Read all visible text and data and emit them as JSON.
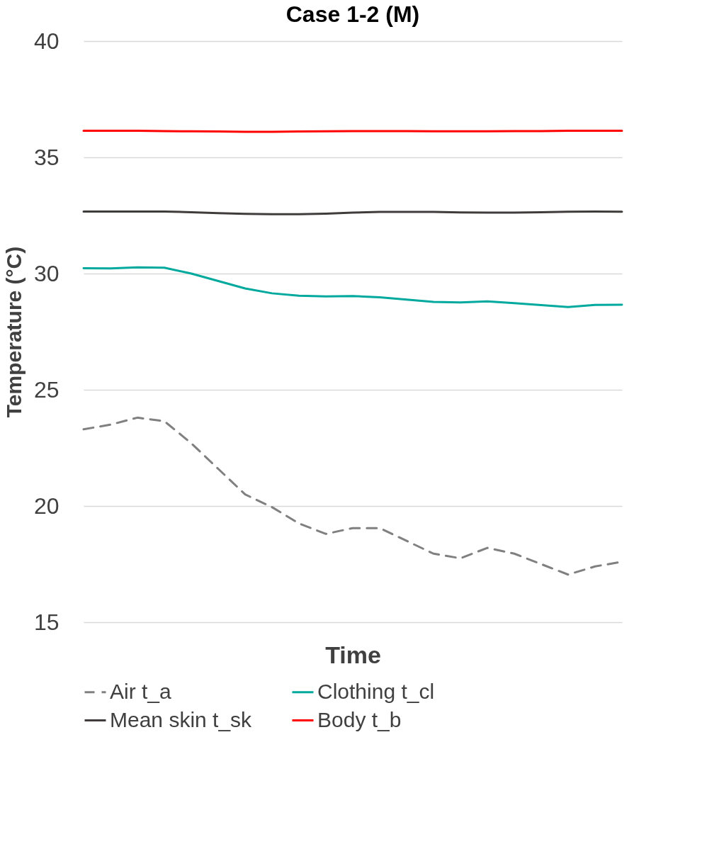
{
  "chart_data": {
    "type": "line",
    "title": "Case 1-2 (M)",
    "xlabel": "Time",
    "ylabel": "Temperature (°C)",
    "categories": [
      null,
      null,
      null,
      null,
      null,
      null,
      null,
      null,
      null,
      null,
      null,
      null,
      null,
      null,
      null,
      null,
      null,
      null,
      null,
      null,
      null
    ],
    "ylim": [
      15,
      40
    ],
    "yticks": [
      15,
      20,
      25,
      30,
      35,
      40
    ],
    "grid": "y",
    "tick_labels": "y",
    "legend": "bottom",
    "marker": "none",
    "series": [
      {
        "name": "Air t_a",
        "color": "#808080",
        "line_style": "dashed",
        "values": [
          23.3,
          23.5,
          23.8,
          23.65,
          22.7,
          21.6,
          20.5,
          19.95,
          19.25,
          18.8,
          19.05,
          19.05,
          18.5,
          17.95,
          17.75,
          18.2,
          17.95,
          17.5,
          17.05,
          17.4,
          17.6
        ]
      },
      {
        "name": "Clothing t_cl",
        "color": "#00a99d",
        "line_style": "solid",
        "values": [
          30.23,
          30.22,
          30.27,
          30.25,
          30.0,
          29.68,
          29.36,
          29.15,
          29.05,
          29.02,
          29.03,
          28.98,
          28.88,
          28.78,
          28.76,
          28.8,
          28.73,
          28.64,
          28.56,
          28.65,
          28.66
        ]
      },
      {
        "name": "Mean skin t_sk",
        "color": "#403c3c",
        "line_style": "solid",
        "values": [
          32.67,
          32.67,
          32.67,
          32.67,
          32.64,
          32.6,
          32.57,
          32.55,
          32.55,
          32.58,
          32.62,
          32.65,
          32.65,
          32.65,
          32.63,
          32.62,
          32.62,
          32.64,
          32.66,
          32.67,
          32.66
        ]
      },
      {
        "name": "Body t_b",
        "color": "#ff0000",
        "line_style": "solid",
        "values": [
          36.14,
          36.14,
          36.14,
          36.13,
          36.12,
          36.11,
          36.1,
          36.1,
          36.11,
          36.12,
          36.13,
          36.13,
          36.13,
          36.12,
          36.12,
          36.12,
          36.13,
          36.13,
          36.14,
          36.14,
          36.14
        ]
      }
    ]
  }
}
